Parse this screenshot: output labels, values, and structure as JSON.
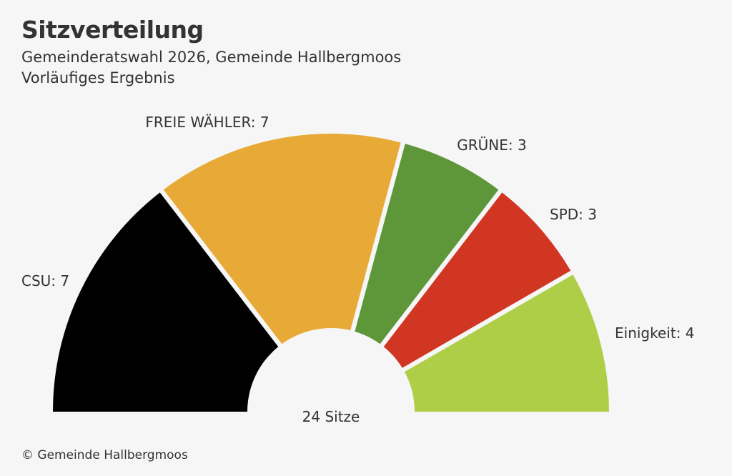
{
  "header": {
    "title": "Sitzverteilung",
    "subtitle_line1": "Gemeinderatswahl 2026, Gemeinde Hallbergmoos",
    "subtitle_line2": "Vorläufiges Ergebnis"
  },
  "footer": {
    "source": "© Gemeinde Hallbergmoos"
  },
  "chart_data": {
    "type": "pie",
    "variant": "semicircle-parliament",
    "title": "Sitzverteilung",
    "total_label": "24 Sitze",
    "series": [
      {
        "name": "CSU",
        "value": 7,
        "label": "CSU: 7",
        "color": "#000000"
      },
      {
        "name": "FREIE WÄHLER",
        "value": 7,
        "label": "FREIE WÄHLER: 7",
        "color": "#e8aa36"
      },
      {
        "name": "GRÜNE",
        "value": 3,
        "label": "GRÜNE: 3",
        "color": "#5e963a"
      },
      {
        "name": "SPD",
        "value": 3,
        "label": "SPD: 3",
        "color": "#d03622"
      },
      {
        "name": "Einigkeit",
        "value": 4,
        "label": "Einigkeit: 4",
        "color": "#aece48"
      }
    ]
  }
}
